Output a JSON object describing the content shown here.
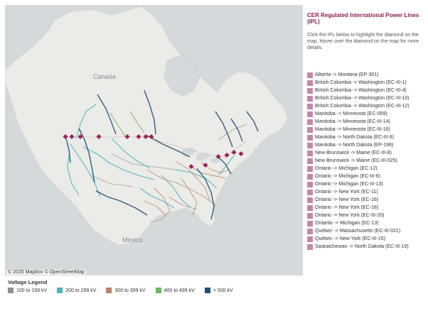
{
  "map": {
    "labels": {
      "canada": "Canada",
      "mexico": "México"
    },
    "attribution": "© 2025 Mapbox © OpenStreetMap",
    "diamond_color": "#9b2257"
  },
  "panel": {
    "title": "CER Regulated International Power Lines (IPL)",
    "description": "Click the IPL below to highlight the diamond on the map. Hover over the diamond on the map for more details.",
    "swatch_color": "#c887a6",
    "items": [
      "Alberta -> Montana (EP-301)",
      "British Columbia -> Washington (EC-III-1)",
      "British Columbia -> Washington (EC-III-4)",
      "British Columbia -> Washington (EC-III-10)",
      "British Columbia -> Washington (EC-III-12)",
      "Manitoba -> Minnesota (EC-059)",
      "Manitoba -> Minnesota (EC-III-14)",
      "Manitoba -> Minnesota (EC-III-16)",
      "Manitoba -> North Dakota (EC-III-9)",
      "Manitoba -> North Dakota (EP-196)",
      "New Brunswick -> Maine (EC-III-8)",
      "New Brunswick -> Maine (EC-III-025)",
      "Ontario -> Michigan (EC-12)",
      "Ontario -> Michigan (EC-III-6)",
      "Ontario -> Michigan (EC-III-13)",
      "Ontario -> New York (EC-11)",
      "Ontario -> New York (EC-16)",
      "Ontario -> New York (EC-18)",
      "Ontario -> New York (EC-III-20)",
      "Ontartio -> Michigan (EC-13)",
      "Québec -> Massachusetts (EC-III-021)",
      "Québec -> New York (EC-III-15)",
      "Saskatchewan -> North Dakota (EC-III-19)"
    ]
  },
  "legend": {
    "title": "Voltage Legend",
    "items": [
      {
        "label": "100 to 199 kV",
        "color": "#8f8f8f"
      },
      {
        "label": "200 to 299 kV",
        "color": "#4ab3c6"
      },
      {
        "label": "300 to 399 kV",
        "color": "#b8846a"
      },
      {
        "label": "400 to 499 kV",
        "color": "#6db760"
      },
      {
        "label": "> 500 kV",
        "color": "#1f4f7a"
      }
    ]
  }
}
